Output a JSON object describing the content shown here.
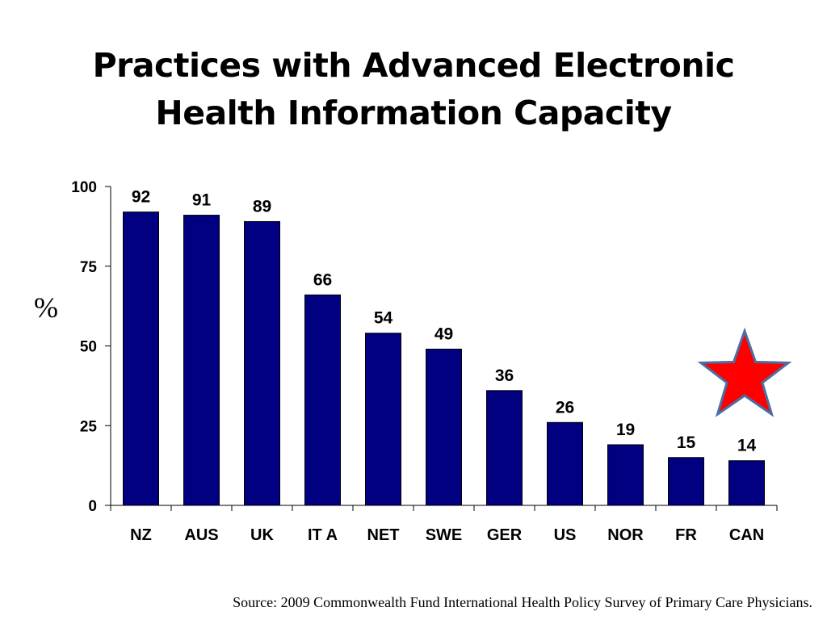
{
  "slide": {
    "title_line1": "Practices with Advanced Electronic",
    "title_line2": "Health Information Capacity",
    "unit_label": "%",
    "source": "Source: 2009 Commonwealth Fund International Health Policy Survey of Primary Care Physicians.",
    "highlight_icon": "star-icon"
  },
  "colors": {
    "bar": "#000080",
    "star_fill": "#ff0000",
    "star_stroke": "#4a6fa5"
  },
  "chart_data": {
    "type": "bar",
    "categories": [
      "NZ",
      "AUS",
      "UK",
      "ITA",
      "NET",
      "SWE",
      "GER",
      "US",
      "NOR",
      "FR",
      "CAN"
    ],
    "category_display": [
      "NZ",
      "AUS",
      "UK",
      "IT A",
      "NET",
      "SWE",
      "GER",
      "US",
      "NOR",
      "FR",
      "CAN"
    ],
    "values": [
      92,
      91,
      89,
      66,
      54,
      49,
      36,
      26,
      19,
      15,
      14
    ],
    "ylim": [
      0,
      100
    ],
    "yticks": [
      0,
      25,
      50,
      75,
      100
    ],
    "ylabel": "%",
    "xlabel": "",
    "grid": false,
    "data_labels": true,
    "highlighted_category": "CAN"
  }
}
